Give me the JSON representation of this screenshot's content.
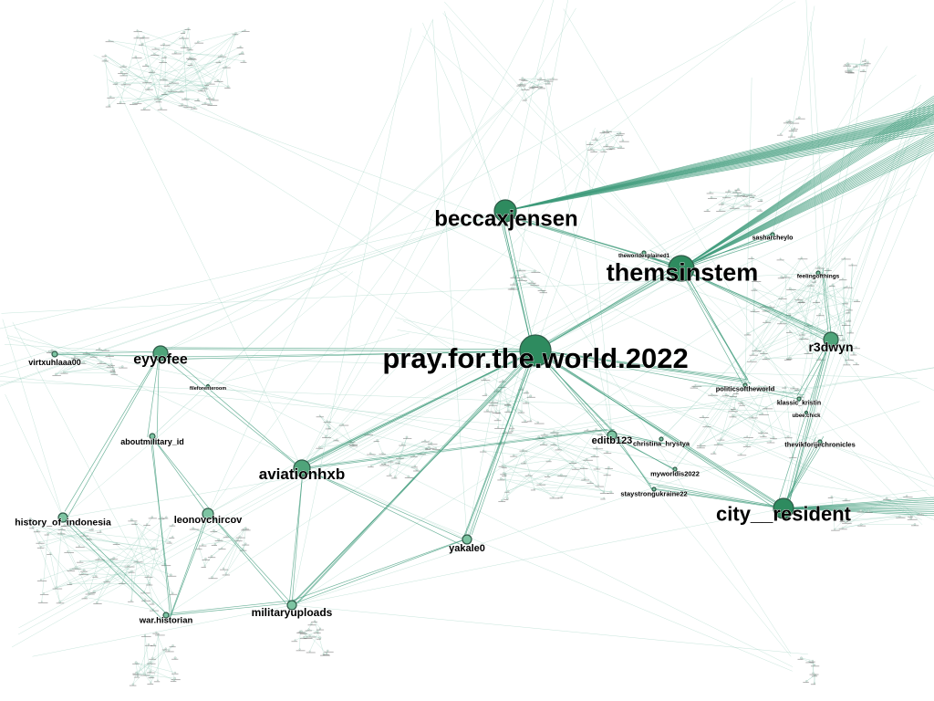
{
  "colors": {
    "edge": "#7fc3ad",
    "edge_major": "#3f9b7b",
    "node_large": "#2e8b5f",
    "node_medium": "#4fa47a",
    "node_small": "#7dc4a2",
    "node_stroke": "#2f5a48"
  },
  "nodes": [
    {
      "label": "pray.for.the.world.2022",
      "size": "xl"
    },
    {
      "label": "themsinstem",
      "size": "lg"
    },
    {
      "label": "beccaxjensen",
      "size": "lg"
    },
    {
      "label": "city__resident",
      "size": "lg"
    },
    {
      "label": "aviationhxb",
      "size": "md"
    },
    {
      "label": "eyyofee",
      "size": "md"
    },
    {
      "label": "r3dwyn",
      "size": "md"
    },
    {
      "label": "leonovchircov",
      "size": "sm"
    },
    {
      "label": "militaryuploads",
      "size": "sm"
    },
    {
      "label": "history_of_indonesia",
      "size": "sm"
    },
    {
      "label": "yakale0",
      "size": "sm"
    },
    {
      "label": "editb123",
      "size": "sm"
    },
    {
      "label": "aboutmilitary_id",
      "size": "xs"
    },
    {
      "label": "war.historian",
      "size": "xs"
    },
    {
      "label": "virtxuhlaaa00",
      "size": "xs"
    },
    {
      "label": "christina_hrystya",
      "size": "xs"
    },
    {
      "label": "myworldis2022",
      "size": "xs"
    },
    {
      "label": "staystrongukraine22",
      "size": "xs"
    },
    {
      "label": "politicsoftheworld",
      "size": "xs"
    },
    {
      "label": "klassic_kristin",
      "size": "xs"
    },
    {
      "label": "thevikforijechronicles",
      "size": "xs"
    },
    {
      "label": "sasharcheylo",
      "size": "xs"
    },
    {
      "label": "theworldexplained1",
      "size": "xs"
    },
    {
      "label": "feelingofthings",
      "size": "xs"
    },
    {
      "label": "fileforenteroom",
      "size": "xs"
    },
    {
      "label": "ubee.chick",
      "size": "xs"
    }
  ],
  "edges": [
    [
      "pray.for.the.world.2022",
      "aviationhxb"
    ],
    [
      "pray.for.the.world.2022",
      "yakale0"
    ],
    [
      "pray.for.the.world.2022",
      "editb123"
    ],
    [
      "pray.for.the.world.2022",
      "beccaxjensen"
    ],
    [
      "pray.for.the.world.2022",
      "eyyofee"
    ],
    [
      "pray.for.the.world.2022",
      "militaryuploads"
    ],
    [
      "pray.for.the.world.2022",
      "themsinstem"
    ],
    [
      "pray.for.the.world.2022",
      "politicsoftheworld"
    ],
    [
      "pray.for.the.world.2022",
      "city__resident"
    ],
    [
      "aviationhxb",
      "yakale0"
    ],
    [
      "aviationhxb",
      "editb123"
    ],
    [
      "aviationhxb",
      "eyyofee"
    ],
    [
      "aviationhxb",
      "militaryuploads"
    ],
    [
      "themsinstem",
      "beccaxjensen"
    ],
    [
      "themsinstem",
      "r3dwyn"
    ],
    [
      "themsinstem",
      "sasharcheylo"
    ],
    [
      "themsinstem",
      "theworldexplained1"
    ],
    [
      "themsinstem",
      "politicsoftheworld"
    ],
    [
      "r3dwyn",
      "klassic_kristin"
    ],
    [
      "r3dwyn",
      "feelingofthings"
    ],
    [
      "r3dwyn",
      "city__resident"
    ],
    [
      "eyyofee",
      "aboutmilitary_id"
    ],
    [
      "eyyofee",
      "history_of_indonesia"
    ],
    [
      "eyyofee",
      "virtxuhlaaa00"
    ],
    [
      "aboutmilitary_id",
      "leonovchircov"
    ],
    [
      "aboutmilitary_id",
      "war.historian"
    ],
    [
      "leonovchircov",
      "militaryuploads"
    ],
    [
      "leonovchircov",
      "war.historian"
    ],
    [
      "war.historian",
      "militaryuploads"
    ],
    [
      "history_of_indonesia",
      "war.historian"
    ],
    [
      "editb123",
      "christina_hrystya"
    ],
    [
      "editb123",
      "myworldis2022"
    ],
    [
      "editb123",
      "staystrongukraine22"
    ],
    [
      "city__resident",
      "staystrongukraine22"
    ],
    [
      "city__resident",
      "thevikforijechronicles"
    ],
    [
      "politicsoftheworld",
      "klassic_kristin"
    ],
    [
      "yakale0",
      "militaryuploads"
    ]
  ]
}
